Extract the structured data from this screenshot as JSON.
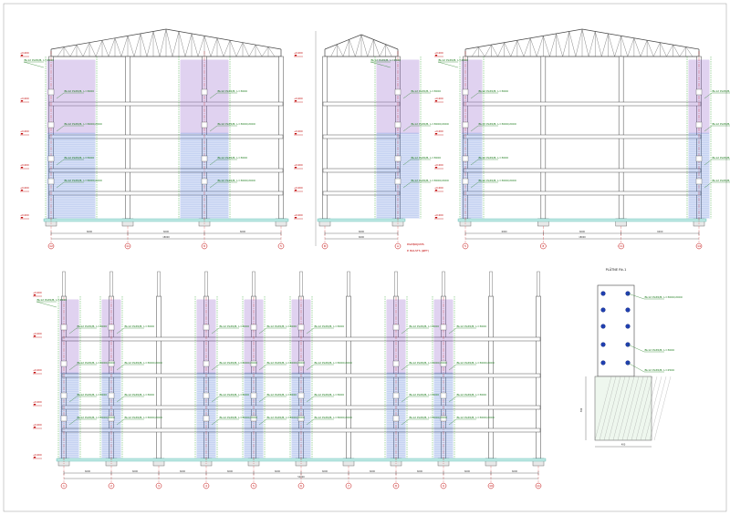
{
  "drawing": {
    "detail_title": "PLĀTNE Rk-1",
    "note_lines": [
      "PAZIŅOJUMS",
      "P. BALSTS (ДЕТ)"
    ]
  },
  "labels": {
    "rebar_a": "BL12 PL65/B, L=3000",
    "rebar_b": "BL12 PL65/B, L=3000/2000",
    "rebar_c": "BL12 PL65/B, L=2500",
    "level": "+0.000"
  },
  "views": {
    "top_left": {
      "axes": [
        "12",
        "11",
        "8",
        "5"
      ],
      "dims": [
        "6000",
        "6000",
        "6000"
      ],
      "total": "18000"
    },
    "top_mid": {
      "axes": [
        "B",
        "A"
      ],
      "dims": [
        "6000"
      ],
      "total": "6000"
    },
    "top_right": {
      "axes": [
        "5",
        "8",
        "11",
        "14"
      ],
      "dims": [
        "6000",
        "6000",
        "6000"
      ],
      "total": "18000"
    },
    "bottom": {
      "axes": [
        "1",
        "2",
        "3",
        "4",
        "5",
        "6",
        "7",
        "8",
        "9",
        "10",
        "11"
      ],
      "dims": [
        "6000",
        "6000",
        "6000",
        "6000",
        "6000",
        "6000",
        "6000",
        "6000",
        "6000",
        "6000"
      ],
      "total": "54000"
    },
    "detail": {
      "dims": [
        "400",
        "500"
      ],
      "notes": [
        "BL12 PL65/B, L=3000/2000",
        "BL12 PL65/B, L=3000",
        "BL12 PL65/B, L=2500"
      ]
    }
  }
}
